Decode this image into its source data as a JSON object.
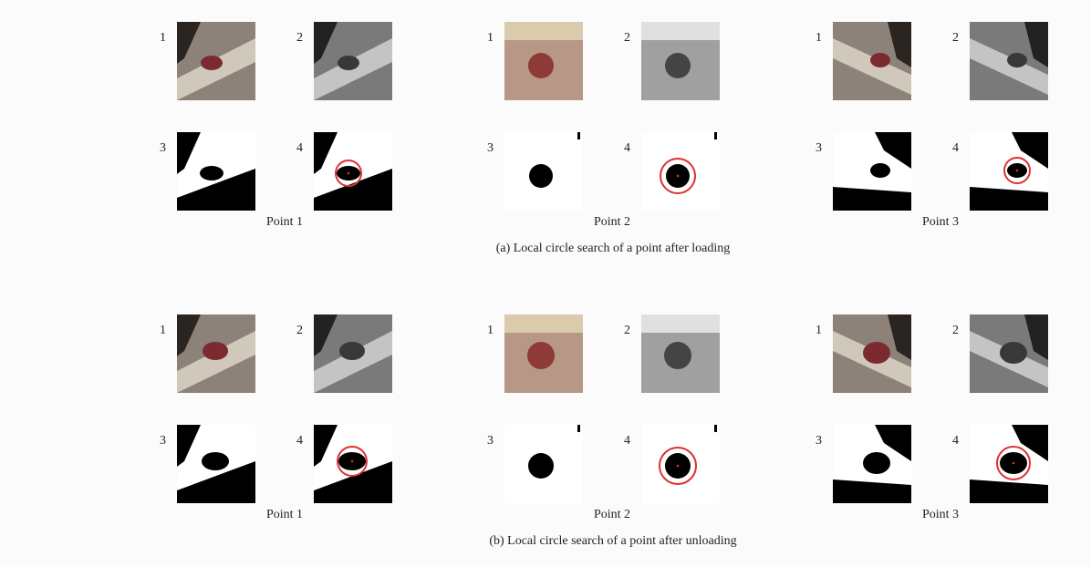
{
  "panels": [
    {
      "caption": "(a) Local circle search of a point after loading",
      "points": [
        {
          "label": "Point 1",
          "subfigures": [
            "1",
            "2",
            "3",
            "4"
          ]
        },
        {
          "label": "Point 2",
          "subfigures": [
            "1",
            "2",
            "3",
            "4"
          ]
        },
        {
          "label": "Point 3",
          "subfigures": [
            "1",
            "2",
            "3",
            "4"
          ]
        }
      ]
    },
    {
      "caption": "(b) Local circle search of a point after unloading",
      "points": [
        {
          "label": "Point 1",
          "subfigures": [
            "1",
            "2",
            "3",
            "4"
          ]
        },
        {
          "label": "Point 2",
          "subfigures": [
            "1",
            "2",
            "3",
            "4"
          ]
        },
        {
          "label": "Point 3",
          "subfigures": [
            "1",
            "2",
            "3",
            "4"
          ]
        }
      ]
    }
  ]
}
